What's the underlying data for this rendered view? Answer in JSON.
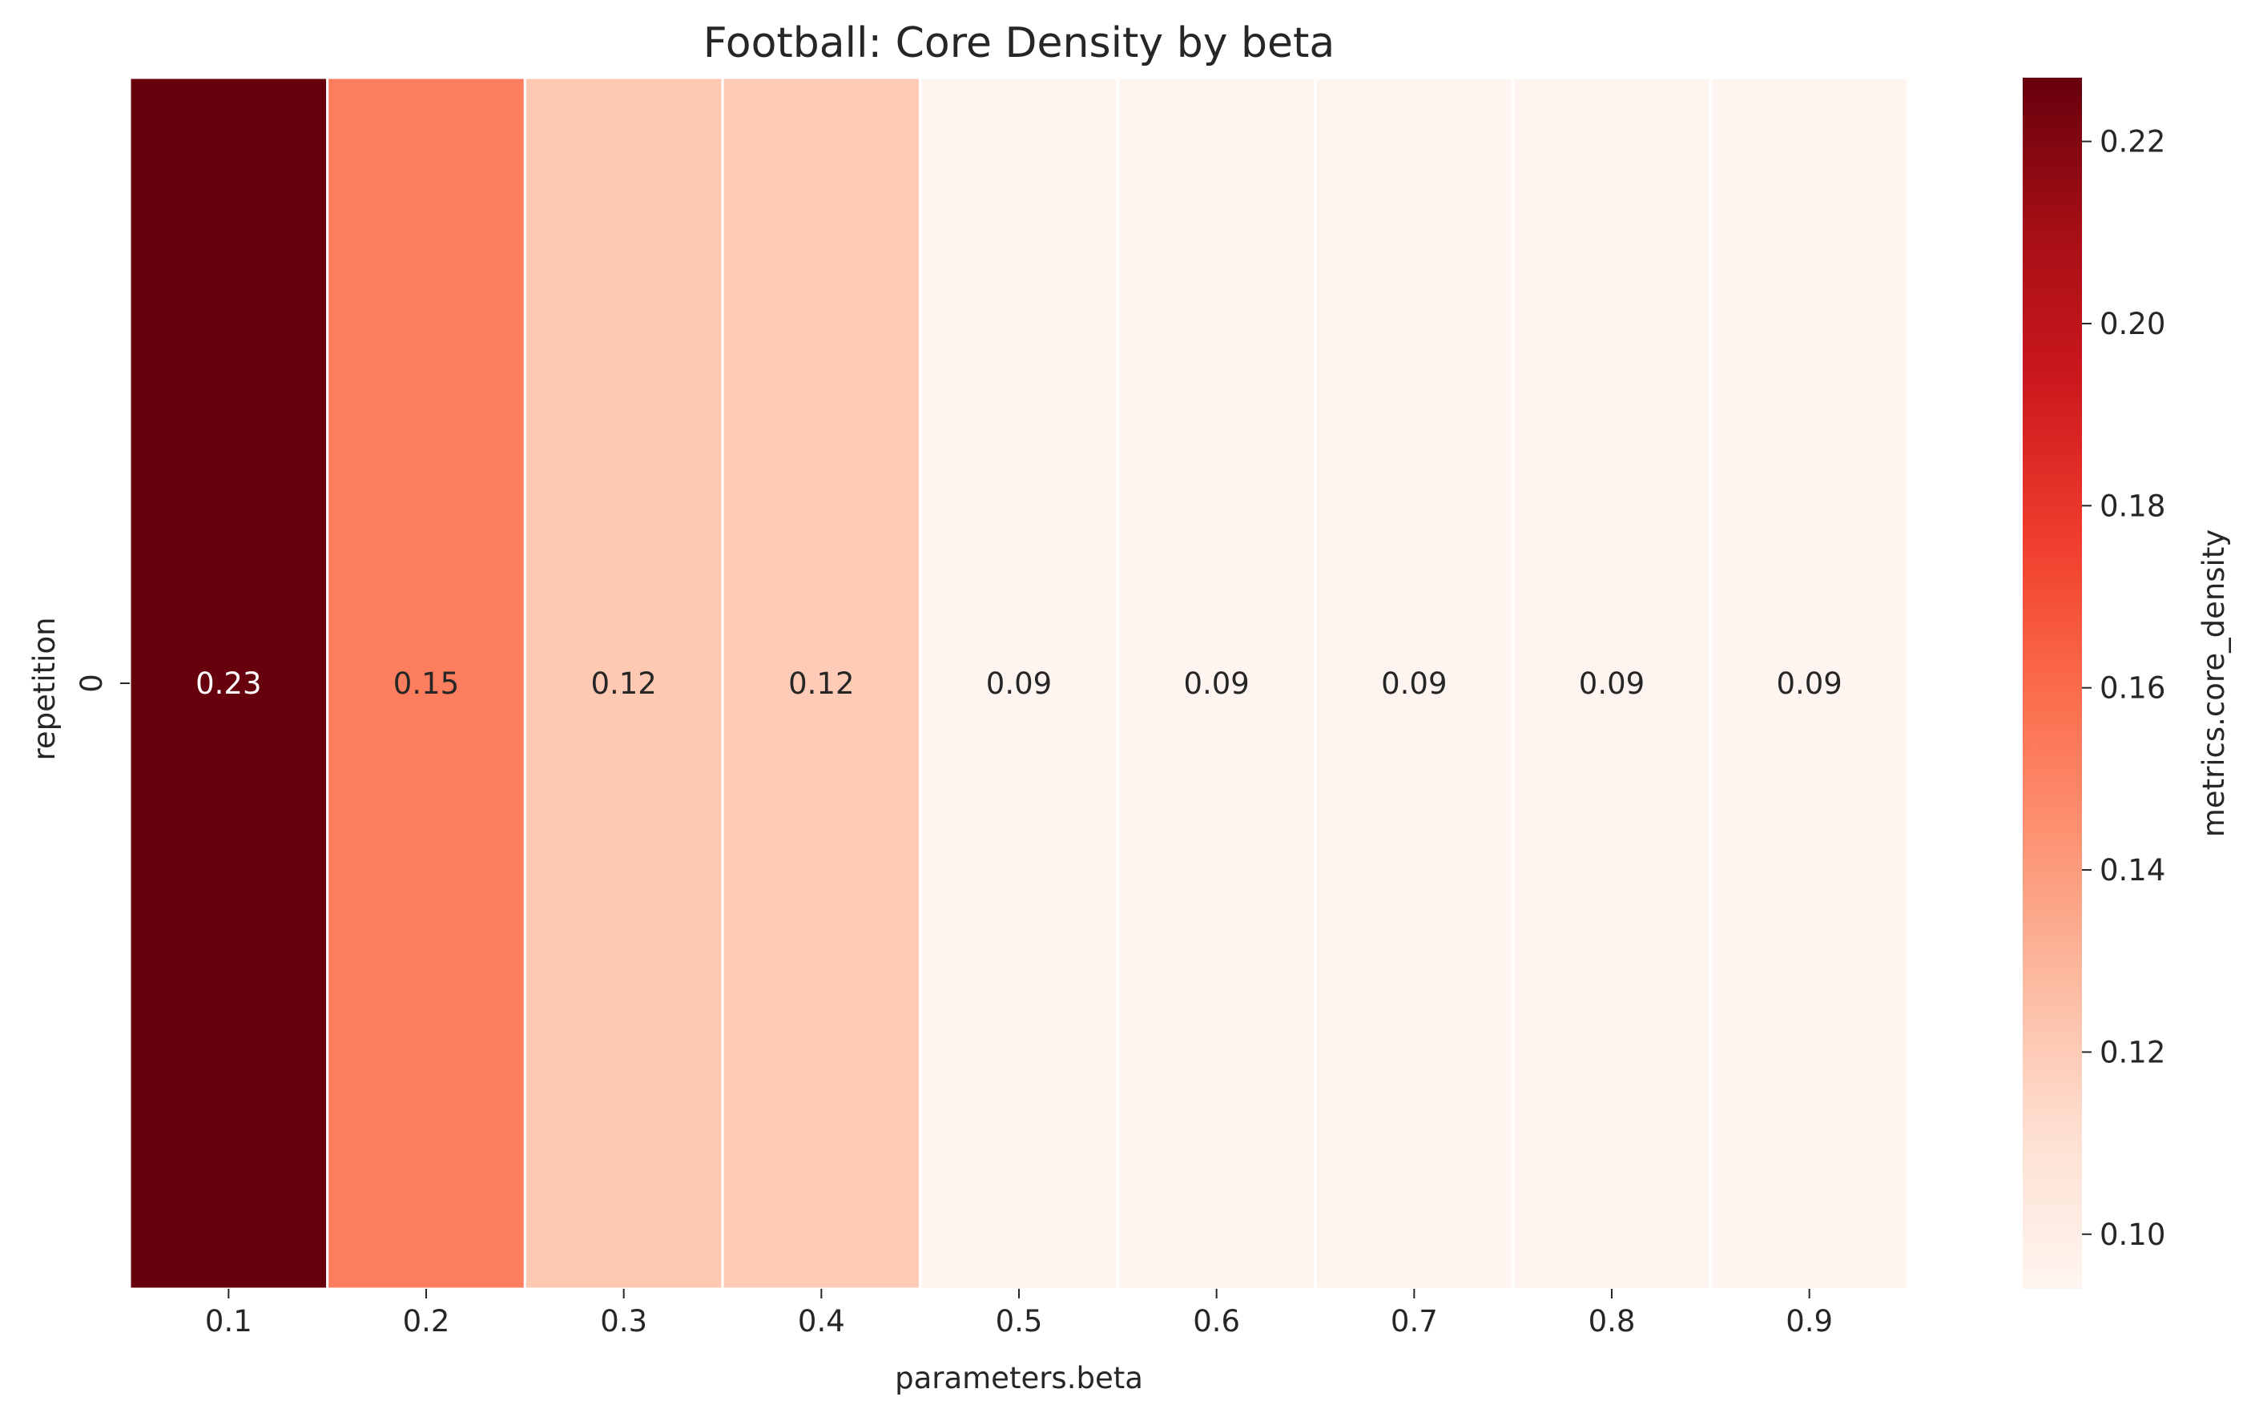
{
  "chart_data": {
    "type": "heatmap",
    "title": "Football: Core Density by beta",
    "xlabel": "parameters.beta",
    "ylabel": "repetition",
    "colorbar_label": "metrics.core_density",
    "x": [
      "0.1",
      "0.2",
      "0.3",
      "0.4",
      "0.5",
      "0.6",
      "0.7",
      "0.8",
      "0.9"
    ],
    "y": [
      "0"
    ],
    "values": [
      [
        0.227,
        0.152,
        0.121,
        0.12,
        0.094,
        0.094,
        0.094,
        0.094,
        0.094
      ]
    ],
    "cell_labels": [
      "0.23",
      "0.15",
      "0.12",
      "0.12",
      "0.09",
      "0.09",
      "0.09",
      "0.09",
      "0.09"
    ],
    "colorscale": "Reds",
    "colorbar_range": [
      0.094,
      0.227
    ],
    "colorbar_ticks": [
      "0.10",
      "0.12",
      "0.14",
      "0.16",
      "0.18",
      "0.20",
      "0.22"
    ],
    "colorbar_tick_values": [
      0.1,
      0.12,
      0.14,
      0.16,
      0.18,
      0.2,
      0.22
    ],
    "grid": false,
    "cell_separator_color": "#ffffff"
  }
}
